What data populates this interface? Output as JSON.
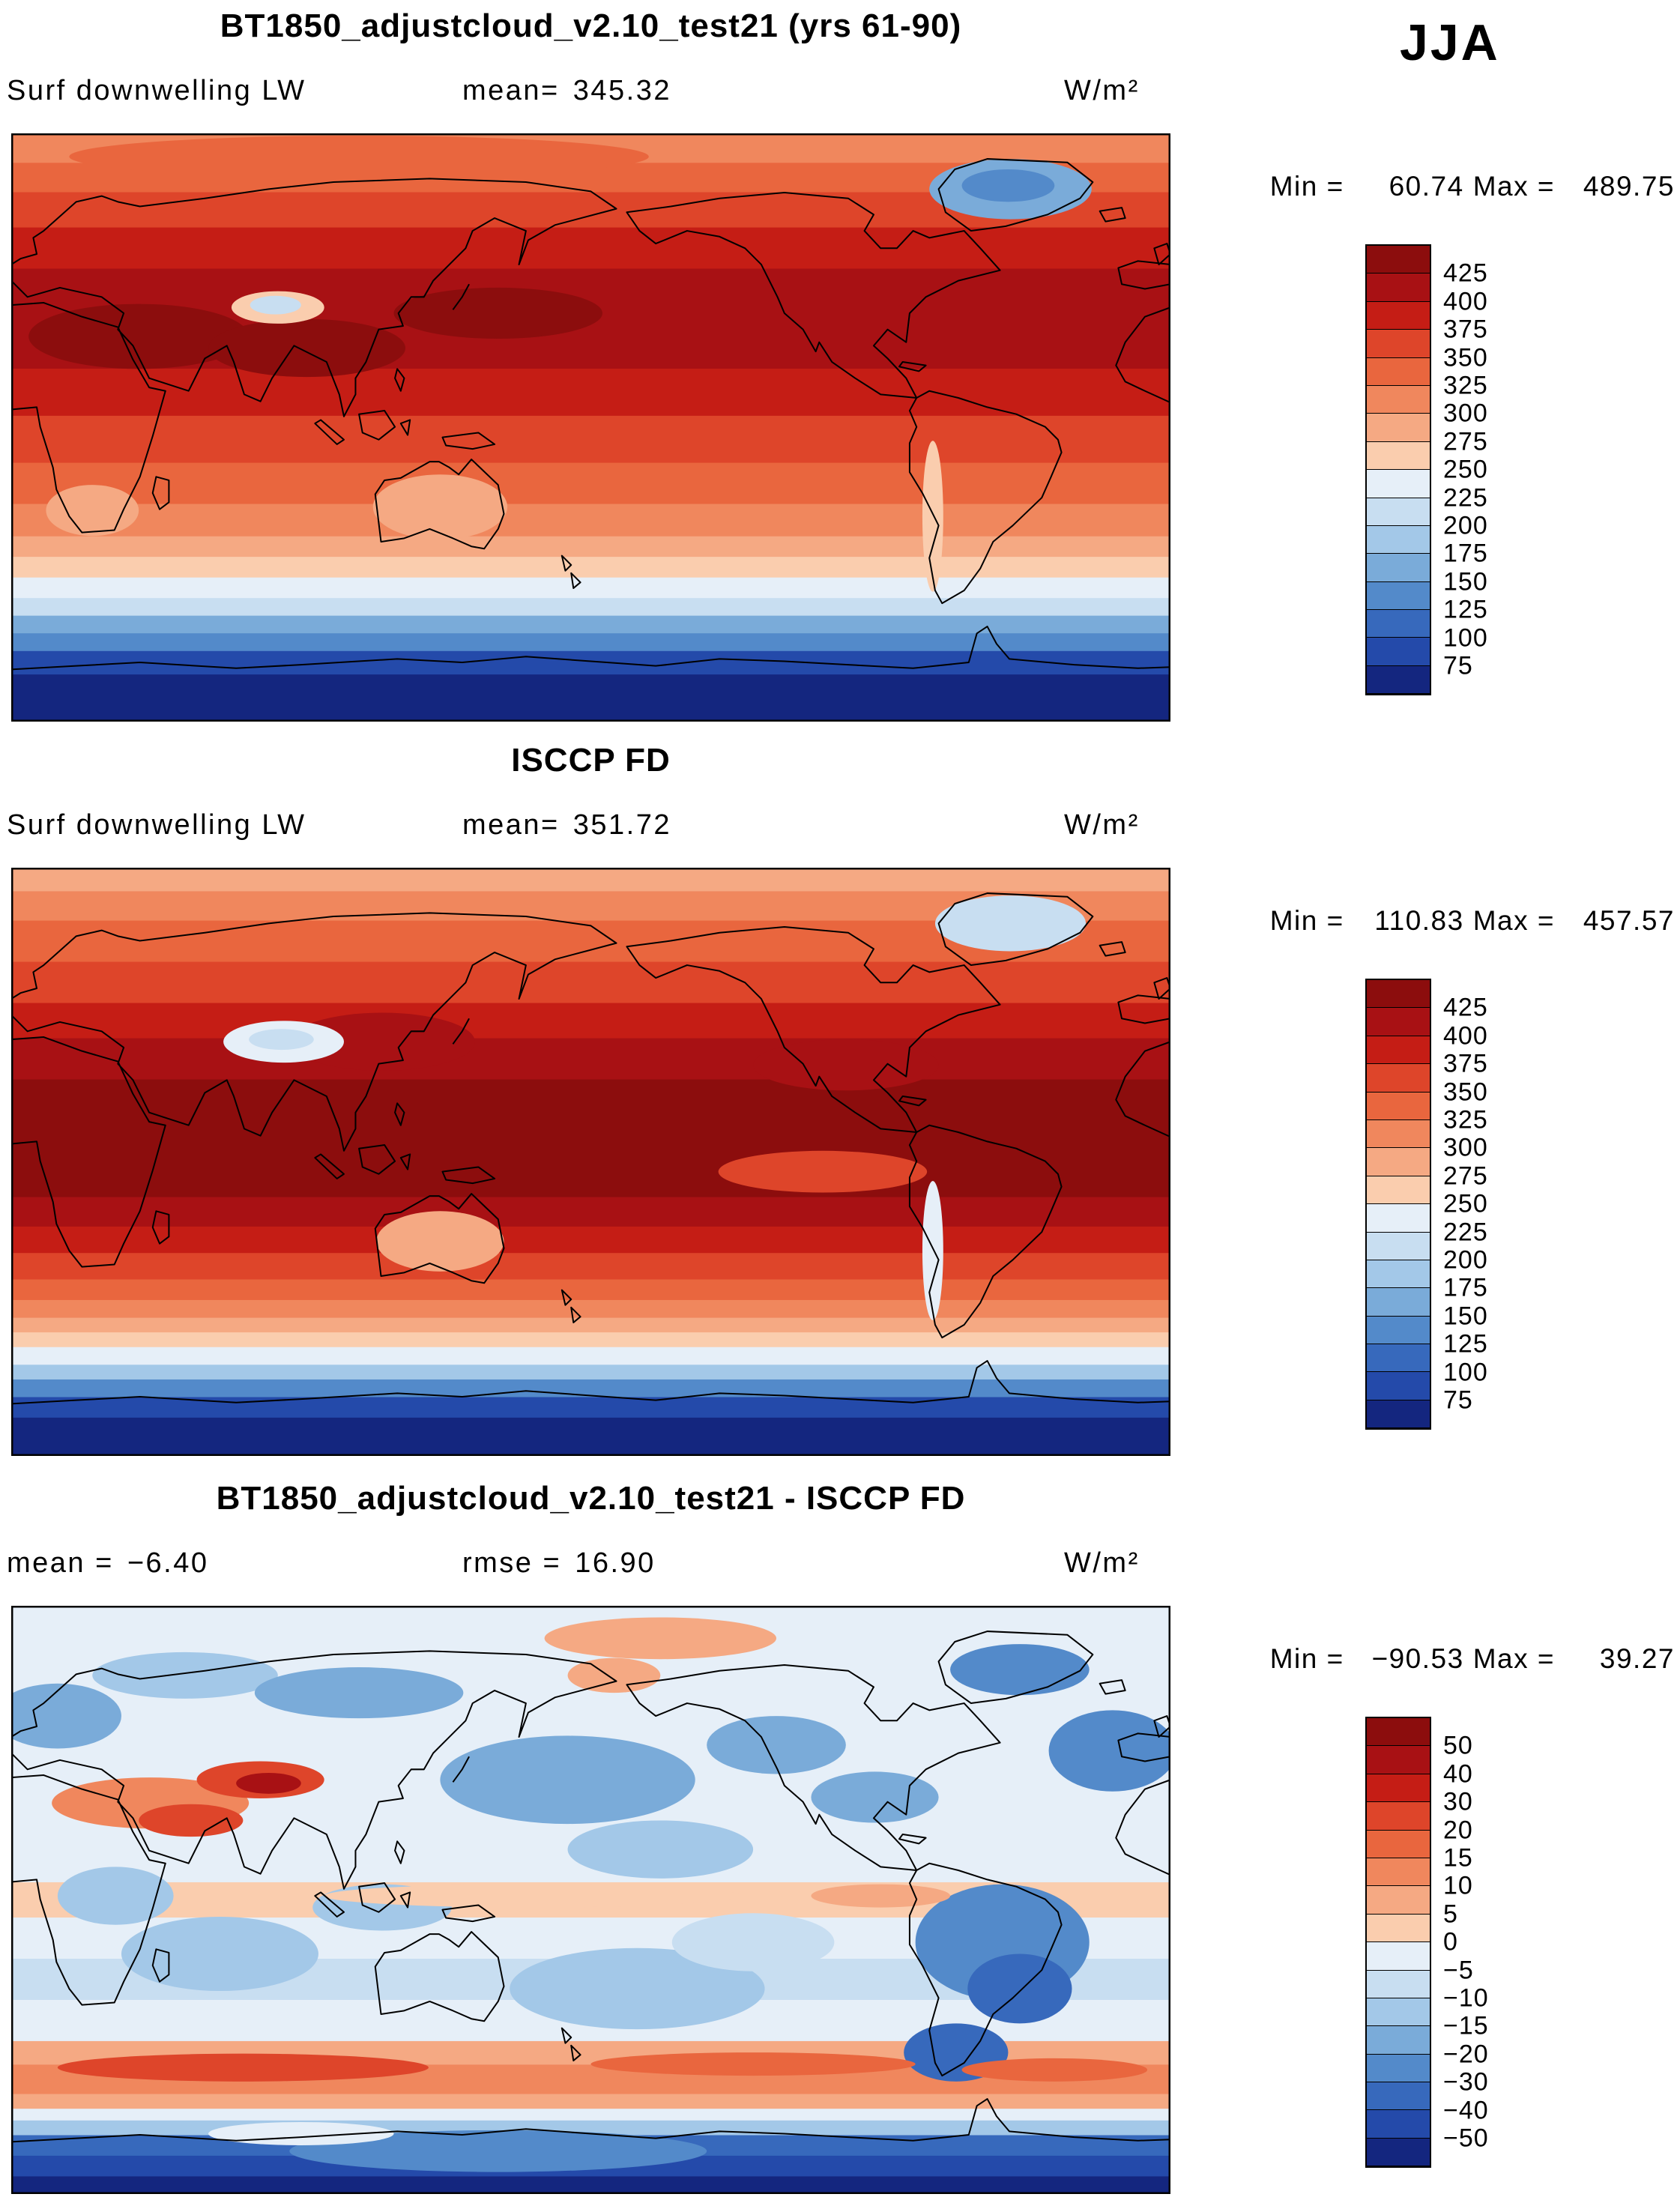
{
  "page": {
    "season_label": "JJA",
    "background": "#ffffff"
  },
  "palette": [
    "#8c0d0d",
    "#a81114",
    "#c51d15",
    "#de452a",
    "#e9663e",
    "#f0875d",
    "#f5a983",
    "#facdae",
    "#e6eff8",
    "#c8def1",
    "#a3c8e8",
    "#7aabd9",
    "#538aca",
    "#3769bc",
    "#244aaa",
    "#14267f"
  ],
  "chart_data": [
    {
      "type": "heatmap",
      "panel": "model",
      "title": "BT1850_adjustcloud_v2.10_test21 (yrs 61-90)",
      "var_label": "Surf downwelling LW",
      "mean_label": "mean=",
      "mean_value": "345.32",
      "units": "W/m²",
      "min_label": "Min =",
      "min_value": "60.74",
      "max_label": "Max =",
      "max_value": "489.75",
      "colorbar_ticks": [
        "425",
        "400",
        "375",
        "350",
        "325",
        "300",
        "275",
        "250",
        "225",
        "200",
        "175",
        "150",
        "125",
        "100",
        "75"
      ],
      "legend_position": "right",
      "bands": [
        [
          0.05,
          5
        ],
        [
          0.1,
          4
        ],
        [
          0.16,
          3
        ],
        [
          0.23,
          2
        ],
        [
          0.4,
          1
        ],
        [
          0.48,
          2
        ],
        [
          0.56,
          3
        ],
        [
          0.63,
          4
        ],
        [
          0.685,
          5
        ],
        [
          0.72,
          6
        ],
        [
          0.755,
          7
        ],
        [
          0.79,
          8
        ],
        [
          0.82,
          9
        ],
        [
          0.85,
          11
        ],
        [
          0.88,
          12
        ],
        [
          0.92,
          14
        ],
        [
          1.0,
          15
        ]
      ],
      "features": [
        [
          110,
          175,
          95,
          28,
          0
        ],
        [
          255,
          185,
          85,
          25,
          0
        ],
        [
          420,
          155,
          90,
          22,
          0
        ],
        [
          300,
          20,
          250,
          18,
          4
        ],
        [
          230,
          150,
          40,
          14,
          7
        ],
        [
          228,
          148,
          22,
          8,
          9
        ],
        [
          862,
          48,
          70,
          26,
          11
        ],
        [
          860,
          45,
          40,
          14,
          12
        ],
        [
          795,
          330,
          9,
          65,
          7
        ],
        [
          370,
          322,
          58,
          28,
          6
        ],
        [
          70,
          325,
          40,
          22,
          6
        ]
      ]
    },
    {
      "type": "heatmap",
      "panel": "isccp",
      "title": "ISCCP FD",
      "var_label": "Surf downwelling LW",
      "mean_label": "mean=",
      "mean_value": "351.72",
      "units": "W/m²",
      "min_label": "Min =",
      "min_value": "110.83",
      "max_label": "Max =",
      "max_value": "457.57",
      "colorbar_ticks": [
        "425",
        "400",
        "375",
        "350",
        "325",
        "300",
        "275",
        "250",
        "225",
        "200",
        "175",
        "150",
        "125",
        "100",
        "75"
      ],
      "legend_position": "right",
      "bands": [
        [
          0.04,
          6
        ],
        [
          0.09,
          5
        ],
        [
          0.16,
          4
        ],
        [
          0.23,
          3
        ],
        [
          0.29,
          2
        ],
        [
          0.36,
          1
        ],
        [
          0.56,
          0
        ],
        [
          0.61,
          1
        ],
        [
          0.655,
          2
        ],
        [
          0.7,
          3
        ],
        [
          0.735,
          4
        ],
        [
          0.765,
          5
        ],
        [
          0.79,
          6
        ],
        [
          0.815,
          7
        ],
        [
          0.845,
          8
        ],
        [
          0.87,
          10
        ],
        [
          0.9,
          12
        ],
        [
          0.935,
          14
        ],
        [
          1.0,
          15
        ]
      ],
      "features": [
        [
          320,
          150,
          80,
          25,
          1
        ],
        [
          720,
          170,
          80,
          22,
          1
        ],
        [
          235,
          150,
          52,
          18,
          8
        ],
        [
          233,
          148,
          28,
          9,
          9
        ],
        [
          862,
          48,
          65,
          24,
          9
        ],
        [
          795,
          330,
          9,
          60,
          8
        ],
        [
          370,
          322,
          55,
          26,
          6
        ],
        [
          700,
          262,
          90,
          18,
          3
        ]
      ]
    },
    {
      "type": "heatmap",
      "panel": "difference",
      "title": "BT1850_adjustcloud_v2.10_test21 - ISCCP FD",
      "mean_label": "mean =",
      "mean_value": "−6.40",
      "rmse_label": "rmse =",
      "rmse_value": "16.90",
      "units": "W/m²",
      "min_label": "Min =",
      "min_value": "−90.53",
      "max_label": "Max =",
      "max_value": "39.27",
      "colorbar_ticks": [
        "50",
        "40",
        "30",
        "20",
        "15",
        "10",
        "5",
        "0",
        "−5",
        "−10",
        "−15",
        "−20",
        "−30",
        "−40",
        "−50"
      ],
      "legend_position": "right",
      "bands": [
        [
          0.47,
          8
        ],
        [
          0.53,
          7
        ],
        [
          0.6,
          8
        ],
        [
          0.67,
          9
        ],
        [
          0.74,
          8
        ],
        [
          0.78,
          6
        ],
        [
          0.83,
          5
        ],
        [
          0.855,
          6
        ],
        [
          0.875,
          8
        ],
        [
          0.9,
          10
        ],
        [
          0.935,
          13
        ],
        [
          0.97,
          14
        ],
        [
          1.0,
          15
        ]
      ],
      "features": [
        [
          40,
          95,
          55,
          28,
          11
        ],
        [
          150,
          60,
          80,
          20,
          10
        ],
        [
          300,
          75,
          90,
          22,
          11
        ],
        [
          480,
          150,
          110,
          38,
          11
        ],
        [
          560,
          210,
          80,
          25,
          10
        ],
        [
          660,
          120,
          60,
          25,
          11
        ],
        [
          745,
          165,
          55,
          22,
          11
        ],
        [
          950,
          125,
          55,
          35,
          12
        ],
        [
          870,
          55,
          60,
          22,
          12
        ],
        [
          855,
          290,
          75,
          50,
          12
        ],
        [
          870,
          330,
          45,
          30,
          13
        ],
        [
          815,
          385,
          45,
          25,
          13
        ],
        [
          180,
          300,
          85,
          32,
          10
        ],
        [
          320,
          260,
          60,
          20,
          10
        ],
        [
          540,
          330,
          110,
          35,
          10
        ],
        [
          640,
          290,
          70,
          25,
          9
        ],
        [
          90,
          250,
          50,
          25,
          10
        ],
        [
          120,
          170,
          85,
          22,
          5
        ],
        [
          155,
          185,
          45,
          14,
          3
        ],
        [
          215,
          150,
          55,
          16,
          3
        ],
        [
          222,
          153,
          28,
          9,
          1
        ],
        [
          560,
          28,
          100,
          18,
          6
        ],
        [
          520,
          60,
          40,
          15,
          6
        ],
        [
          450,
          250,
          180,
          10,
          7
        ],
        [
          750,
          250,
          60,
          10,
          6
        ],
        [
          200,
          398,
          160,
          12,
          3
        ],
        [
          640,
          395,
          140,
          10,
          4
        ],
        [
          900,
          400,
          80,
          10,
          4
        ],
        [
          420,
          470,
          180,
          18,
          12
        ],
        [
          250,
          455,
          80,
          10,
          8
        ]
      ]
    }
  ]
}
